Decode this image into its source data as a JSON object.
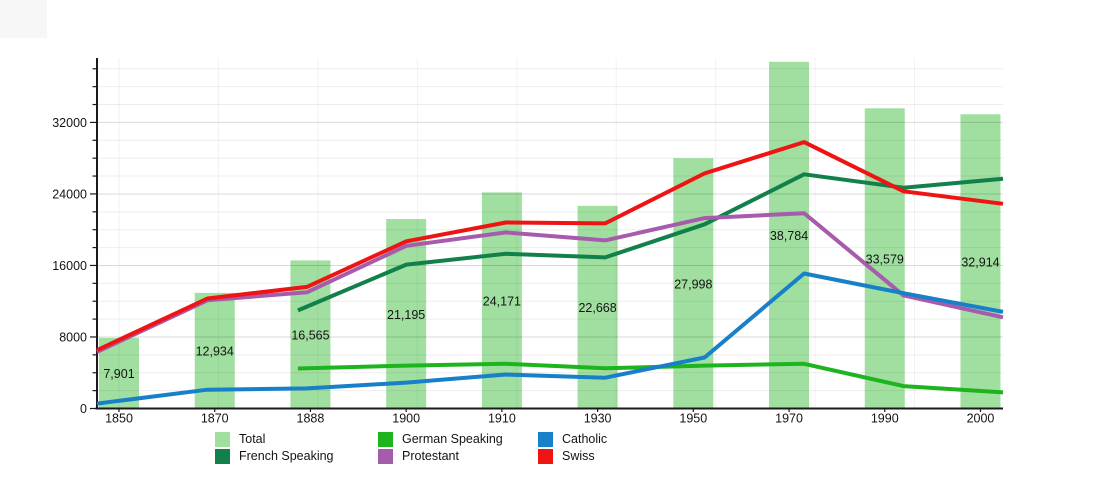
{
  "chart_data": {
    "type": "combo_bar_line",
    "title": "",
    "categories": [
      "1850",
      "1870",
      "1888",
      "1900",
      "1910",
      "1930",
      "1950",
      "1970",
      "1990",
      "2000"
    ],
    "y_axis": {
      "tick_values": [
        0,
        8000,
        16000,
        24000,
        32000
      ],
      "tick_labels": [
        "0",
        "8000",
        "16000",
        "24000",
        "32000"
      ],
      "minor_step": 2000,
      "ylim": [
        0,
        39000
      ],
      "grid": true
    },
    "bar_series": {
      "name": "Total",
      "color": "#a1dfa1",
      "values": [
        7901,
        12934,
        16565,
        21195,
        24171,
        22668,
        27998,
        38784,
        33579,
        32914
      ],
      "value_labels": [
        "7,901",
        "12,934",
        "16,565",
        "21,195",
        "24,171",
        "22,668",
        "27,998",
        "38,784",
        "33,579",
        "32,914"
      ]
    },
    "line_series": [
      {
        "name": "German Speaking",
        "color": "#1eb41e",
        "values": [
          null,
          null,
          4500,
          4800,
          5000,
          4500,
          4800,
          5000,
          2500,
          1800
        ]
      },
      {
        "name": "French Speaking",
        "color": "#12804a",
        "values": [
          null,
          null,
          11400,
          16100,
          17300,
          16900,
          20600,
          26200,
          24700,
          25700
        ]
      },
      {
        "name": "Protestant",
        "color": "#a75bac",
        "values": [
          6900,
          12100,
          13000,
          18200,
          19700,
          18800,
          21300,
          21850,
          12650,
          10200
        ]
      },
      {
        "name": "Catholic",
        "color": "#1780c8",
        "values": [
          700,
          2100,
          2250,
          2900,
          3800,
          3450,
          5700,
          15100,
          12900,
          10800
        ]
      },
      {
        "name": "Swiss",
        "color": "#ee1414",
        "values": [
          7100,
          12300,
          13600,
          18700,
          20800,
          20700,
          26300,
          29800,
          24300,
          22900
        ]
      }
    ],
    "legend": {
      "position": "bottom",
      "items": [
        {
          "label": "Total",
          "color": "#a1dfa1"
        },
        {
          "label": "German Speaking",
          "color": "#1eb41e"
        },
        {
          "label": "Catholic",
          "color": "#1780c8"
        },
        {
          "label": "French Speaking",
          "color": "#12804a"
        },
        {
          "label": "Protestant",
          "color": "#a75bac"
        },
        {
          "label": "Swiss",
          "color": "#ee1414"
        }
      ]
    }
  }
}
